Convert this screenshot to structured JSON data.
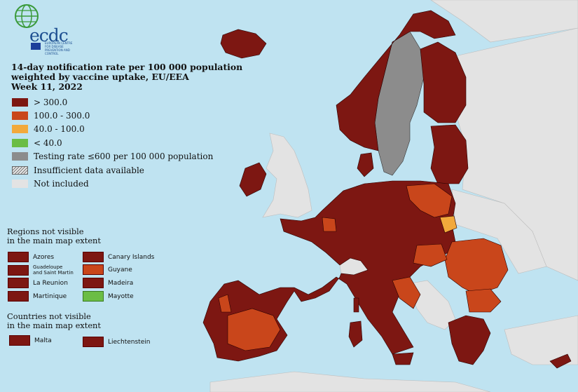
{
  "logo": {
    "name": "ecdc",
    "subtitle": "EUROPEAN CENTRE FOR DISEASE PREVENTION AND CONTROL"
  },
  "title": {
    "line1": "14-day notification rate per 100 000 population",
    "line2": "weighted by vaccine uptake, EU/EEA",
    "line3": "Week 11, 2022"
  },
  "legend": [
    {
      "label": "> 300.0",
      "color": "#7d1712"
    },
    {
      "label": "100.0 - 300.0",
      "color": "#c9461b"
    },
    {
      "label": "40.0 - 100.0",
      "color": "#f2a93b"
    },
    {
      "label": "< 40.0",
      "color": "#6bbd45"
    },
    {
      "label": "Testing rate ≤600 per 100 000 population",
      "color": "#8c8c8c"
    },
    {
      "label": "Insufficient data available",
      "color": "hatched"
    },
    {
      "label": "Not included",
      "color": "#e3e3e3"
    }
  ],
  "regions_title": {
    "line1": "Regions not visible",
    "line2": "in the main map extent"
  },
  "regions": [
    {
      "label": "Azores",
      "color": "#7d1712"
    },
    {
      "label1": "Guadeloupe",
      "label2": "and Saint Martin",
      "color": "#7d1712"
    },
    {
      "label": "La Reunion",
      "color": "#7d1712"
    },
    {
      "label": "Martinique",
      "color": "#7d1712"
    },
    {
      "label": "Canary Islands",
      "color": "#7d1712"
    },
    {
      "label": "Guyane",
      "color": "#c9461b"
    },
    {
      "label": "Madeira",
      "color": "#7d1712"
    },
    {
      "label": "Mayotte",
      "color": "#6bbd45"
    }
  ],
  "countries_title": {
    "line1": "Countries not visible",
    "line2": "in the main map extent"
  },
  "countries": [
    {
      "label": "Malta",
      "color": "#7d1712"
    },
    {
      "label": "Liechtenstein",
      "color": "#7d1712"
    }
  ],
  "colors": {
    "sea": "#bfe3f1",
    "not_included": "#e3e3e3",
    "high": "#7d1712",
    "mid": "#c9461b",
    "low": "#f2a93b",
    "very_low": "#6bbd45",
    "testing": "#8c8c8c",
    "border": "#000000"
  }
}
